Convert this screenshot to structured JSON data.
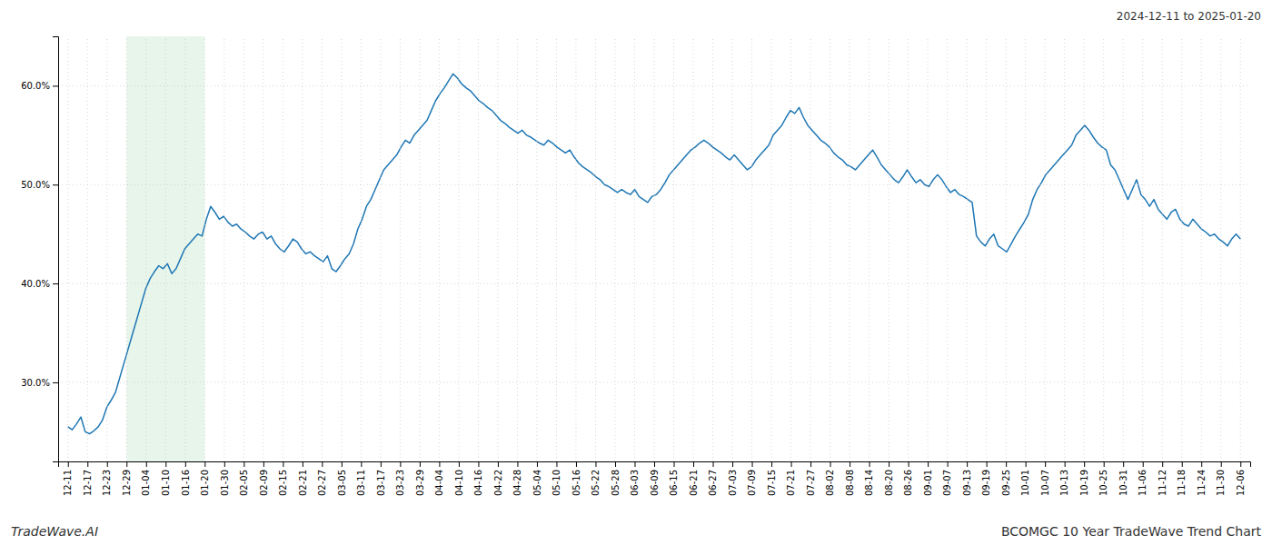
{
  "chart_data": {
    "type": "line",
    "title": "BCOMGC 10 Year TradeWave Trend Chart",
    "subtitle": "2024-12-11 to 2025-01-20",
    "annotations": [
      "TradeWave.AI"
    ],
    "color": "#1f77b4",
    "grid": true,
    "xlim": [
      -0.5,
      60.5
    ],
    "xticks": [
      {
        "value": 0,
        "label": "12-11"
      },
      {
        "value": 1,
        "label": "12-17"
      },
      {
        "value": 2,
        "label": "12-23"
      },
      {
        "value": 3,
        "label": "12-29"
      },
      {
        "value": 4,
        "label": "01-04"
      },
      {
        "value": 5,
        "label": "01-10"
      },
      {
        "value": 6,
        "label": "01-16"
      },
      {
        "value": 7,
        "label": "01-20"
      },
      {
        "value": 8,
        "label": "01-30"
      },
      {
        "value": 9,
        "label": "02-05"
      },
      {
        "value": 10,
        "label": "02-09"
      },
      {
        "value": 11,
        "label": "02-15"
      },
      {
        "value": 12,
        "label": "02-21"
      },
      {
        "value": 13,
        "label": "02-27"
      },
      {
        "value": 14,
        "label": "03-05"
      },
      {
        "value": 15,
        "label": "03-11"
      },
      {
        "value": 16,
        "label": "03-17"
      },
      {
        "value": 17,
        "label": "03-23"
      },
      {
        "value": 18,
        "label": "03-29"
      },
      {
        "value": 19,
        "label": "04-04"
      },
      {
        "value": 20,
        "label": "04-10"
      },
      {
        "value": 21,
        "label": "04-16"
      },
      {
        "value": 22,
        "label": "04-22"
      },
      {
        "value": 23,
        "label": "04-28"
      },
      {
        "value": 24,
        "label": "05-04"
      },
      {
        "value": 25,
        "label": "05-10"
      },
      {
        "value": 26,
        "label": "05-16"
      },
      {
        "value": 27,
        "label": "05-22"
      },
      {
        "value": 28,
        "label": "05-28"
      },
      {
        "value": 29,
        "label": "06-03"
      },
      {
        "value": 30,
        "label": "06-09"
      },
      {
        "value": 31,
        "label": "06-15"
      },
      {
        "value": 32,
        "label": "06-21"
      },
      {
        "value": 33,
        "label": "06-27"
      },
      {
        "value": 34,
        "label": "07-03"
      },
      {
        "value": 35,
        "label": "07-09"
      },
      {
        "value": 36,
        "label": "07-15"
      },
      {
        "value": 37,
        "label": "07-21"
      },
      {
        "value": 38,
        "label": "07-27"
      },
      {
        "value": 39,
        "label": "08-02"
      },
      {
        "value": 40,
        "label": "08-08"
      },
      {
        "value": 41,
        "label": "08-14"
      },
      {
        "value": 42,
        "label": "08-20"
      },
      {
        "value": 43,
        "label": "08-26"
      },
      {
        "value": 44,
        "label": "09-01"
      },
      {
        "value": 45,
        "label": "09-07"
      },
      {
        "value": 46,
        "label": "09-13"
      },
      {
        "value": 47,
        "label": "09-19"
      },
      {
        "value": 48,
        "label": "09-25"
      },
      {
        "value": 49,
        "label": "10-01"
      },
      {
        "value": 50,
        "label": "10-07"
      },
      {
        "value": 51,
        "label": "10-13"
      },
      {
        "value": 52,
        "label": "10-19"
      },
      {
        "value": 53,
        "label": "10-25"
      },
      {
        "value": 54,
        "label": "10-31"
      },
      {
        "value": 55,
        "label": "11-06"
      },
      {
        "value": 56,
        "label": "11-12"
      },
      {
        "value": 57,
        "label": "11-18"
      },
      {
        "value": 58,
        "label": "11-24"
      },
      {
        "value": 59,
        "label": "11-30"
      },
      {
        "value": 60,
        "label": "12-06"
      }
    ],
    "ylim": [
      22,
      65
    ],
    "yticks": [
      {
        "value": 30.0,
        "label": "30.0%"
      },
      {
        "value": 40.0,
        "label": "40.0%"
      },
      {
        "value": 50.0,
        "label": "50.0%"
      },
      {
        "value": 60.0,
        "label": "60.0%"
      }
    ],
    "shaded_region": {
      "x": [
        3,
        7
      ],
      "color": "#d4edda"
    },
    "x": [
      0,
      0.2214,
      0.4428,
      0.6642,
      0.8856,
      1.107,
      1.3284,
      1.5498,
      1.7712,
      1.9926,
      2.214,
      2.4354,
      2.6568,
      2.8782,
      3.0996,
      3.321,
      3.5424,
      3.7638,
      3.9852,
      4.2066,
      4.428,
      4.6494,
      4.8708,
      5.0923,
      5.3137,
      5.5351,
      5.7565,
      5.9779,
      6.1993,
      6.4207,
      6.6421,
      6.8635,
      7.0849,
      7.3063,
      7.5277,
      7.7491,
      7.9705,
      8.1919,
      8.4133,
      8.6347,
      8.8561,
      9.0775,
      9.2989,
      9.5203,
      9.7417,
      9.9631,
      10.1845,
      10.4059,
      10.6273,
      10.8487,
      11.0701,
      11.2915,
      11.5129,
      11.7343,
      11.9557,
      12.1771,
      12.3985,
      12.6199,
      12.8413,
      13.0627,
      13.2841,
      13.5055,
      13.7269,
      13.9483,
      14.1697,
      14.3911,
      14.6125,
      14.8339,
      15.0554,
      15.2768,
      15.4982,
      15.7196,
      15.941,
      16.1624,
      16.3838,
      16.6052,
      16.8266,
      17.048,
      17.2694,
      17.4908,
      17.7122,
      17.9336,
      18.155,
      18.3764,
      18.5978,
      18.8192,
      19.0406,
      19.262,
      19.4834,
      19.7048,
      19.9262,
      20.1476,
      20.369,
      20.5904,
      20.8118,
      21.0332,
      21.2546,
      21.476,
      21.6974,
      21.9188,
      22.1402,
      22.3616,
      22.583,
      22.8044,
      23.0258,
      23.2472,
      23.4686,
      23.69,
      23.9114,
      24.1328,
      24.3542,
      24.5756,
      24.797,
      25.0185,
      25.2399,
      25.4613,
      25.6827,
      25.9041,
      26.1255,
      26.3469,
      26.5683,
      26.7897,
      27.0111,
      27.2325,
      27.4539,
      27.6753,
      27.8967,
      28.1181,
      28.3395,
      28.5609,
      28.7823,
      29.0037,
      29.2251,
      29.4465,
      29.6679,
      29.8893,
      30.1107,
      30.3321,
      30.5535,
      30.7749,
      30.9963,
      31.2177,
      31.4391,
      31.6605,
      31.8819,
      32.1033,
      32.3247,
      32.5461,
      32.7675,
      32.9889,
      33.2103,
      33.4317,
      33.6531,
      33.8745,
      34.0959,
      34.3173,
      34.5387,
      34.7601,
      34.9815,
      35.203,
      35.4244,
      35.6458,
      35.8672,
      36.0886,
      36.31,
      36.5314,
      36.7528,
      36.9742,
      37.1956,
      37.417,
      37.6384,
      37.8598,
      38.0812,
      38.3026,
      38.524,
      38.7454,
      38.9668,
      39.1882,
      39.4096,
      39.631,
      39.8524,
      40.0738,
      40.2952,
      40.5166,
      40.738,
      40.9594,
      41.1808,
      41.4022,
      41.6236,
      41.845,
      42.0664,
      42.2878,
      42.5092,
      42.7306,
      42.952,
      43.1734,
      43.3948,
      43.6162,
      43.8376,
      44.059,
      44.2804,
      44.5018,
      44.7232,
      44.9446,
      45.1661,
      45.3875,
      45.6089,
      45.8303,
      46.0517,
      46.2731,
      46.4945,
      46.7159,
      46.9373,
      47.1587,
      47.3801,
      47.6015,
      47.8229,
      48.0443,
      48.2657,
      48.4871,
      48.7085,
      48.9299,
      49.1513,
      49.3727,
      49.5941,
      49.8155,
      50.0369,
      50.2583,
      50.4797,
      50.7011,
      50.9225,
      51.1439,
      51.3653,
      51.5867,
      51.8081,
      52.0295,
      52.2509,
      52.4723,
      52.6937,
      52.9151,
      53.1365,
      53.3579,
      53.5793,
      53.8007,
      54.0221,
      54.2435,
      54.4649,
      54.6863,
      54.9077,
      55.1292,
      55.3506,
      55.572,
      55.7934,
      56.0148,
      56.2362,
      56.4576,
      56.679,
      56.9004,
      57.1218,
      57.3432,
      57.5646,
      57.786,
      58.0074,
      58.2288,
      58.4502,
      58.6716,
      58.893,
      59.1144,
      59.3358,
      59.5572,
      59.7786,
      60
    ],
    "values": [
      25.5,
      25.2,
      25.8,
      26.5,
      25.0,
      24.8,
      25.1,
      25.5,
      26.2,
      27.5,
      28.2,
      29.0,
      30.5,
      32.0,
      33.5,
      35.0,
      36.5,
      38.0,
      39.5,
      40.5,
      41.2,
      41.8,
      41.5,
      42.0,
      41.0,
      41.5,
      42.5,
      43.5,
      44.0,
      44.5,
      45.0,
      44.8,
      46.5,
      47.8,
      47.2,
      46.5,
      46.8,
      46.2,
      45.8,
      46.0,
      45.5,
      45.2,
      44.8,
      44.5,
      45.0,
      45.2,
      44.5,
      44.8,
      44.0,
      43.5,
      43.2,
      43.8,
      44.5,
      44.2,
      43.5,
      43.0,
      43.2,
      42.8,
      42.5,
      42.2,
      42.8,
      41.5,
      41.2,
      41.8,
      42.5,
      43.0,
      44.0,
      45.5,
      46.5,
      47.8,
      48.5,
      49.5,
      50.5,
      51.5,
      52.0,
      52.5,
      53.0,
      53.8,
      54.5,
      54.2,
      55.0,
      55.5,
      56.0,
      56.5,
      57.5,
      58.5,
      59.2,
      59.8,
      60.5,
      61.2,
      60.8,
      60.2,
      59.8,
      59.5,
      59.0,
      58.5,
      58.2,
      57.8,
      57.5,
      57.0,
      56.5,
      56.2,
      55.8,
      55.5,
      55.2,
      55.5,
      55.0,
      54.8,
      54.5,
      54.2,
      54.0,
      54.5,
      54.2,
      53.8,
      53.5,
      53.2,
      53.5,
      52.8,
      52.2,
      51.8,
      51.5,
      51.2,
      50.8,
      50.5,
      50.0,
      49.8,
      49.5,
      49.2,
      49.5,
      49.2,
      49.0,
      49.5,
      48.8,
      48.5,
      48.2,
      48.8,
      49.0,
      49.5,
      50.2,
      51.0,
      51.5,
      52.0,
      52.5,
      53.0,
      53.5,
      53.8,
      54.2,
      54.5,
      54.2,
      53.8,
      53.5,
      53.2,
      52.8,
      52.5,
      53.0,
      52.5,
      52.0,
      51.5,
      51.8,
      52.5,
      53.0,
      53.5,
      54.0,
      55.0,
      55.5,
      56.0,
      56.8,
      57.5,
      57.2,
      57.8,
      56.8,
      56.0,
      55.5,
      55.0,
      54.5,
      54.2,
      53.8,
      53.2,
      52.8,
      52.5,
      52.0,
      51.8,
      51.5,
      52.0,
      52.5,
      53.0,
      53.5,
      52.8,
      52.0,
      51.5,
      51.0,
      50.5,
      50.2,
      50.8,
      51.5,
      50.8,
      50.2,
      50.5,
      50.0,
      49.8,
      50.5,
      51.0,
      50.5,
      49.8,
      49.2,
      49.5,
      49.0,
      48.8,
      48.5,
      48.2,
      44.8,
      44.2,
      43.8,
      44.5,
      45.0,
      43.8,
      43.5,
      43.2,
      44.0,
      44.8,
      45.5,
      46.2,
      47.0,
      48.5,
      49.5,
      50.2,
      51.0,
      51.5,
      52.0,
      52.5,
      53.0,
      53.5,
      54.0,
      55.0,
      55.5,
      56.0,
      55.5,
      54.8,
      54.2,
      53.8,
      53.5,
      52.0,
      51.5,
      50.5,
      49.5,
      48.5,
      49.5,
      50.5,
      49.0,
      48.5,
      47.8,
      48.5,
      47.5,
      47.0,
      46.5,
      47.2,
      47.5,
      46.5,
      46.0,
      45.8,
      46.5,
      46.0,
      45.5,
      45.2,
      44.8,
      45.0,
      44.5,
      44.2,
      43.8,
      44.5,
      45.0,
      44.5
    ]
  }
}
